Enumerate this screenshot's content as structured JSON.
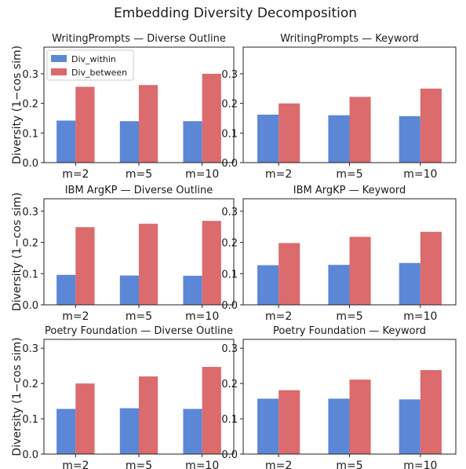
{
  "figure_title": "Embedding Diversity Decomposition",
  "colors": {
    "div_within": "#5b87d6",
    "div_between": "#db6b6c",
    "axis": "#222222"
  },
  "chart_data": [
    {
      "type": "bar",
      "title": "WritingPrompts — Diverse Outline",
      "categories": [
        "m=2",
        "m=5",
        "m=10"
      ],
      "series": [
        {
          "name": "Div_within",
          "values": [
            0.142,
            0.14,
            0.14
          ]
        },
        {
          "name": "Div_between",
          "values": [
            0.256,
            0.262,
            0.3
          ]
        }
      ],
      "ylabel": "Diversity (1−cos sim)",
      "ylim": [
        0,
        0.39
      ],
      "yticks": [
        0.0,
        0.1,
        0.2,
        0.3
      ],
      "legend": "top-left",
      "grid": false
    },
    {
      "type": "bar",
      "title": "WritingPrompts — Keyword",
      "categories": [
        "m=2",
        "m=5",
        "m=10"
      ],
      "series": [
        {
          "name": "Div_within",
          "values": [
            0.162,
            0.16,
            0.157
          ]
        },
        {
          "name": "Div_between",
          "values": [
            0.2,
            0.222,
            0.25
          ]
        }
      ],
      "ylabel": "",
      "ylim": [
        0,
        0.39
      ],
      "yticks": [
        0.0,
        0.1,
        0.2,
        0.3
      ],
      "legend": "none",
      "grid": false
    },
    {
      "type": "bar",
      "title": "IBM ArgKP — Diverse Outline",
      "categories": [
        "m=2",
        "m=5",
        "m=10"
      ],
      "series": [
        {
          "name": "Div_within",
          "values": [
            0.096,
            0.094,
            0.093
          ]
        },
        {
          "name": "Div_between",
          "values": [
            0.249,
            0.26,
            0.269
          ]
        }
      ],
      "ylabel": "Diversity (1−cos sim)",
      "ylim": [
        0,
        0.34
      ],
      "yticks": [
        0.0,
        0.1,
        0.2,
        0.3
      ],
      "legend": "none",
      "grid": false
    },
    {
      "type": "bar",
      "title": "IBM ArgKP — Keyword",
      "categories": [
        "m=2",
        "m=5",
        "m=10"
      ],
      "series": [
        {
          "name": "Div_within",
          "values": [
            0.127,
            0.128,
            0.134
          ]
        },
        {
          "name": "Div_between",
          "values": [
            0.198,
            0.218,
            0.234
          ]
        }
      ],
      "ylabel": "",
      "ylim": [
        0,
        0.34
      ],
      "yticks": [
        0.0,
        0.1,
        0.2,
        0.3
      ],
      "legend": "none",
      "grid": false
    },
    {
      "type": "bar",
      "title": "Poetry Foundation — Diverse Outline",
      "categories": [
        "m=2",
        "m=5",
        "m=10"
      ],
      "series": [
        {
          "name": "Div_within",
          "values": [
            0.128,
            0.13,
            0.128
          ]
        },
        {
          "name": "Div_between",
          "values": [
            0.2,
            0.22,
            0.247
          ]
        }
      ],
      "ylabel": "Diversity (1−cos sim)",
      "ylim": [
        0,
        0.325
      ],
      "yticks": [
        0.0,
        0.1,
        0.2,
        0.3
      ],
      "legend": "none",
      "grid": false
    },
    {
      "type": "bar",
      "title": "Poetry Foundation — Keyword",
      "categories": [
        "m=2",
        "m=5",
        "m=10"
      ],
      "series": [
        {
          "name": "Div_within",
          "values": [
            0.157,
            0.157,
            0.155
          ]
        },
        {
          "name": "Div_between",
          "values": [
            0.181,
            0.211,
            0.238
          ]
        }
      ],
      "ylabel": "",
      "ylim": [
        0,
        0.325
      ],
      "yticks": [
        0.0,
        0.1,
        0.2,
        0.3
      ],
      "legend": "none",
      "grid": false
    }
  ]
}
